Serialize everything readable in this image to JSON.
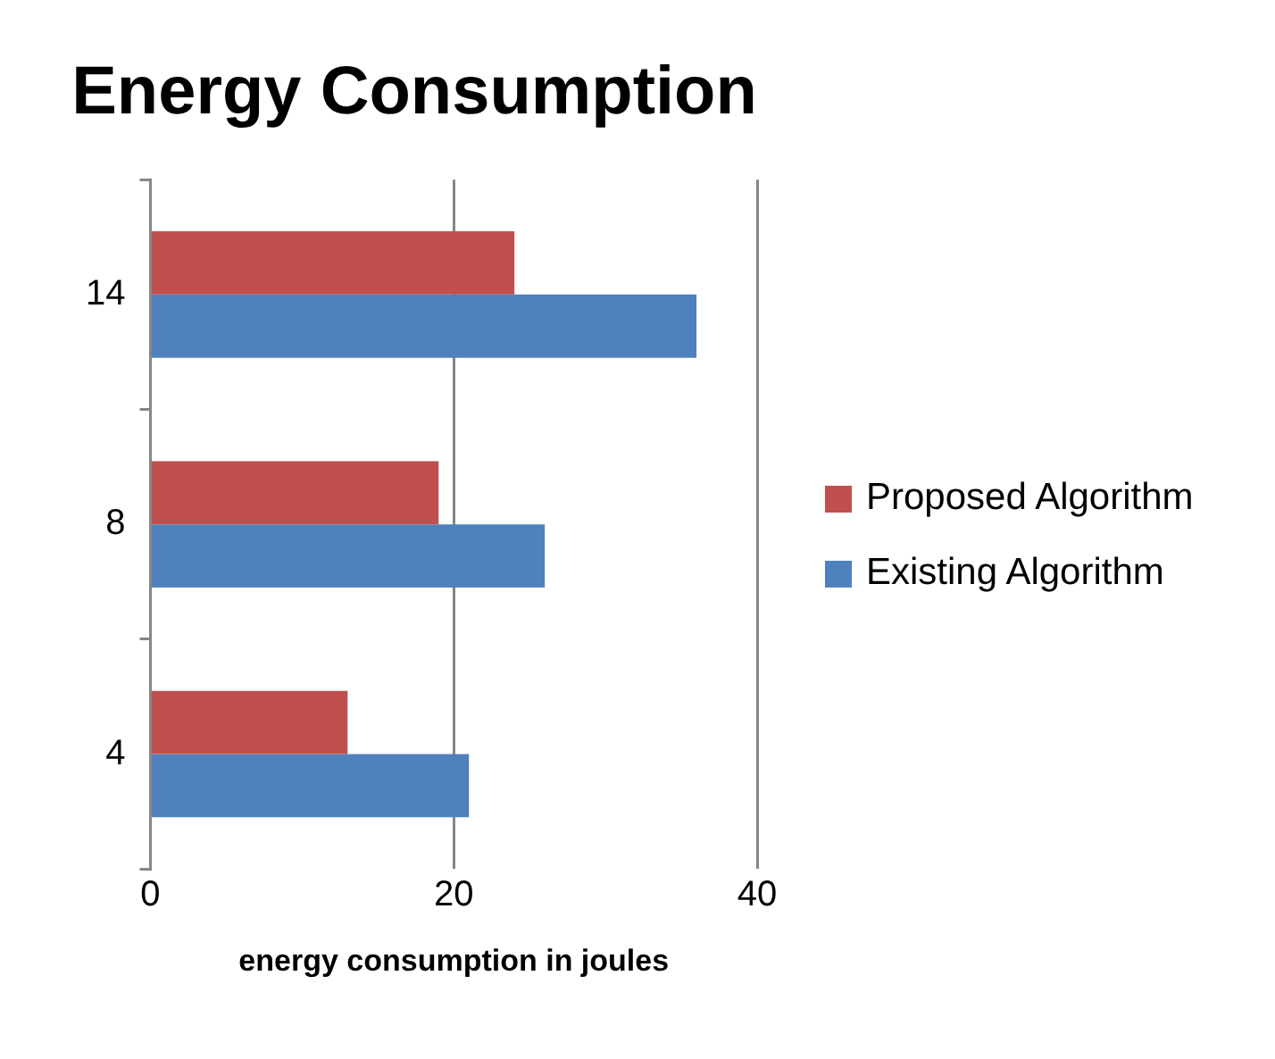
{
  "chart_data": {
    "type": "bar",
    "orientation": "horizontal",
    "title": "Energy Consumption",
    "xlabel": "energy consumption in joules",
    "categories": [
      "14",
      "8",
      "4"
    ],
    "series": [
      {
        "name": "Proposed Algorithm",
        "color": "#c0504d",
        "values": [
          24,
          19,
          13
        ]
      },
      {
        "name": "Existing Algorithm",
        "color": "#4f81bd",
        "values": [
          36,
          26,
          21
        ]
      }
    ],
    "xlim": [
      0,
      40
    ],
    "xticks": [
      0,
      20,
      40
    ],
    "grid": "x",
    "legend": "right"
  }
}
